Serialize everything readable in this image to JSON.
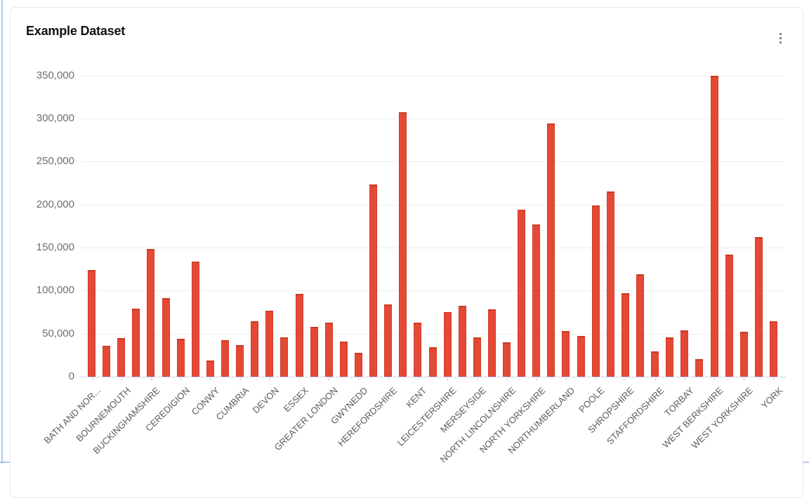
{
  "page": {
    "accent_color": "#abc8e6"
  },
  "card": {
    "title": "Example Dataset",
    "menu_icon": "kebab-vertical-icon"
  },
  "chart_data": {
    "type": "bar",
    "title": "Example Dataset",
    "bar_color": "#e54935",
    "bar_border_color": "#d23d28",
    "grid": true,
    "legend": "none",
    "ylim": [
      0,
      350000
    ],
    "ytick_step": 50000,
    "ytick_labels": [
      "0",
      "50,000",
      "100,000",
      "150,000",
      "200,000",
      "250,000",
      "300,000",
      "350,000"
    ],
    "x_label_interval": 2,
    "x_label_rotation": 45,
    "x_labels": [
      "BATH AND NOR...",
      "BOURNEMOUTH",
      "BUCKINGHAMSHIRE",
      "CEREDIGION",
      "CONWY",
      "CUMBRIA",
      "DEVON",
      "ESSEX",
      "GREATER LONDON",
      "GWYNEDD",
      "HEREFORDSHIRE",
      "KENT",
      "LEICESTERSHIRE",
      "MERSEYSIDE",
      "NORTH LINCOLNSHIRE",
      "NORTH YORKSHIRE",
      "NORTHUMBERLAND",
      "POOLE",
      "SHROPSHIRE",
      "STAFFORDSHIRE",
      "TORBAY",
      "WEST BERKSHIRE",
      "WEST YORKSHIRE",
      "YORK"
    ],
    "values": [
      124000,
      36000,
      45000,
      79000,
      148000,
      91000,
      44000,
      134000,
      19000,
      42000,
      37000,
      64000,
      77000,
      46000,
      96000,
      58000,
      63000,
      41000,
      28000,
      223000,
      84000,
      307000,
      63000,
      34000,
      75000,
      82000,
      46000,
      78000,
      40000,
      194000,
      177000,
      294000,
      53000,
      47000,
      199000,
      215000,
      97000,
      119000,
      29000,
      46000,
      54000,
      20000,
      350000,
      142000,
      52000,
      162000,
      64000
    ]
  }
}
